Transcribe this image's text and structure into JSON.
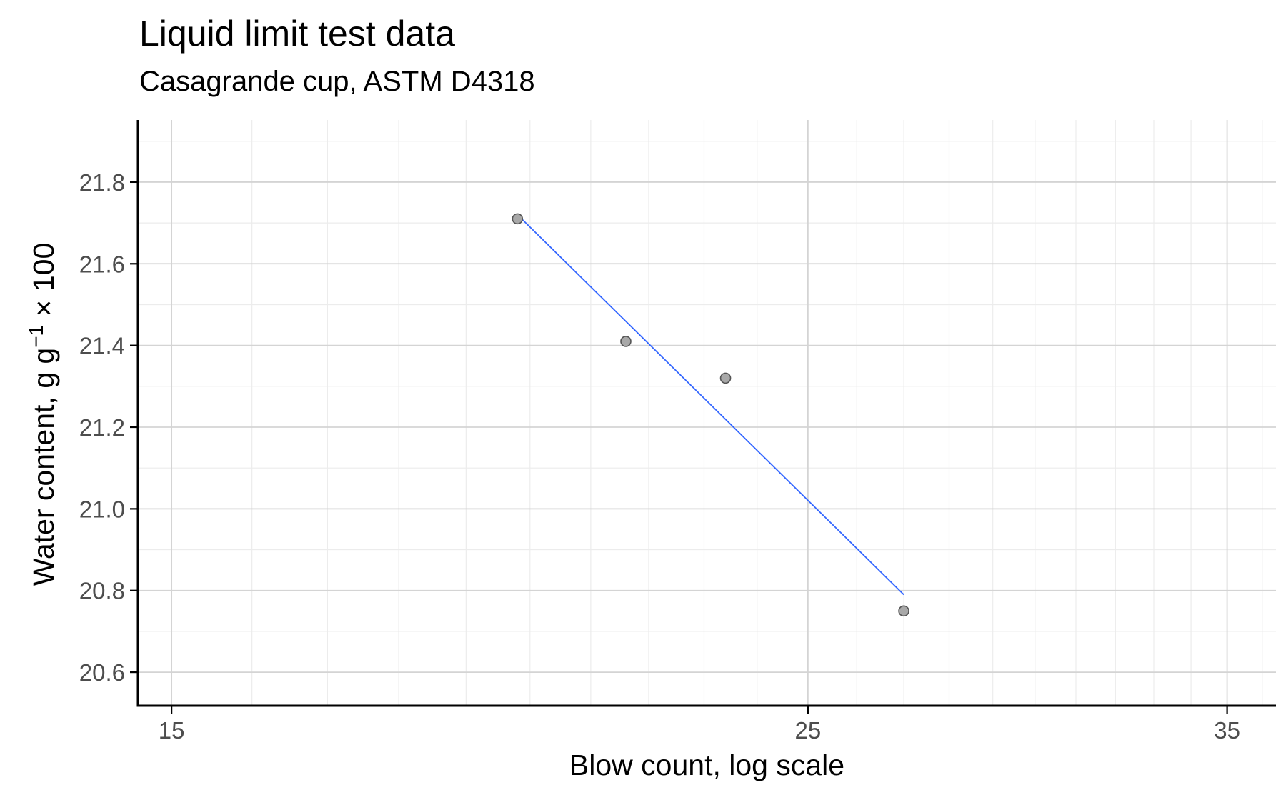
{
  "chart_data": {
    "type": "scatter",
    "title": "Liquid limit test data",
    "subtitle": "Casagrande cup, ASTM D4318",
    "xlabel": "Blow count, log scale",
    "ylabel": {
      "main": "Water content, g g",
      "superscript": "−1",
      "suffix": " × 100"
    },
    "x_scale": "log",
    "xlim": [
      14.6,
      36.4
    ],
    "ylim": [
      20.518,
      21.952
    ],
    "x_ticks": [
      15,
      25,
      35
    ],
    "y_ticks": [
      20.6,
      20.8,
      21.0,
      21.2,
      21.4,
      21.6,
      21.8
    ],
    "y_tick_labels": [
      "20.6",
      "20.8",
      "21.0",
      "21.2",
      "21.4",
      "21.6",
      "21.8"
    ],
    "grid": true,
    "points": [
      {
        "x": 19.8,
        "y": 21.71
      },
      {
        "x": 21.6,
        "y": 21.41
      },
      {
        "x": 23.4,
        "y": 21.32
      },
      {
        "x": 27.0,
        "y": 20.75
      }
    ],
    "fit_line": {
      "x": [
        19.8,
        27.0
      ],
      "y": [
        21.72,
        20.79
      ]
    },
    "colors": {
      "point_fill": "#a8a8a8",
      "point_stroke": "#555555",
      "fit_line": "#3366ff",
      "grid_major": "#d4d4d4",
      "grid_minor": "#ececec",
      "axis": "#000000",
      "tick_label": "#4d4d4d"
    }
  }
}
